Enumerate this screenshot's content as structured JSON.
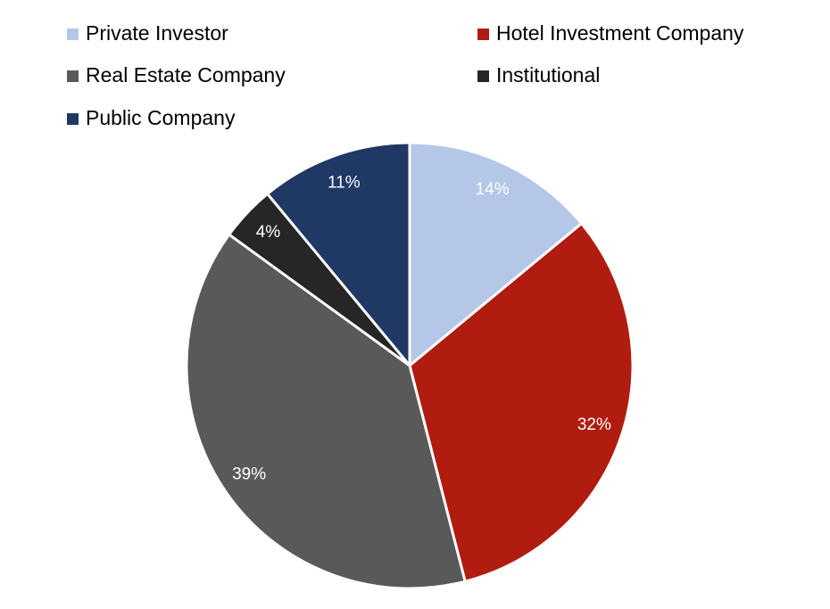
{
  "chart_data": {
    "type": "pie",
    "categories": [
      "Private Investor",
      "Hotel Investment Company",
      "Real Estate Company",
      "Institutional",
      "Public Company"
    ],
    "values": [
      14,
      32,
      39,
      4,
      11
    ],
    "value_labels": [
      "14%",
      "32%",
      "39%",
      "4%",
      "11%"
    ],
    "colors": [
      "#b4c7e7",
      "#b01c10",
      "#595959",
      "#262626",
      "#203864"
    ]
  }
}
